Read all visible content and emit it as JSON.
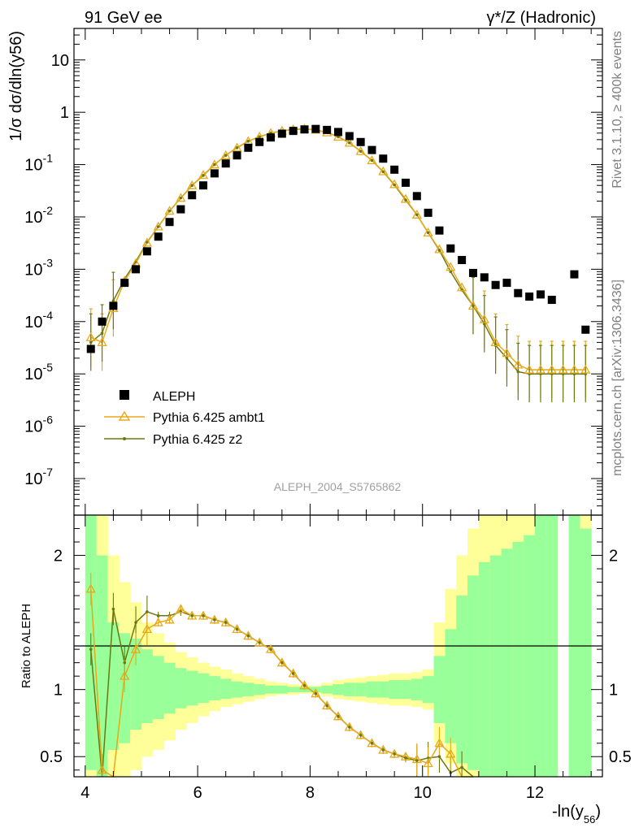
{
  "header": {
    "left": "91 GeV ee",
    "right": "γ*/Z (Hadronic)"
  },
  "side_text": {
    "top": "Rivet 3.1.10, ≥ 400k events",
    "bottom": "mcplots.cern.ch [arXiv:1306.3436]"
  },
  "watermark": "ALEPH_2004_S5765862",
  "colors": {
    "data": "#000000",
    "ambt1": "#e8a818",
    "z2": "#6b7a10",
    "band_inner": "#99ff99",
    "band_outer": "#ffff99"
  },
  "legend": [
    {
      "label": "ALEPH",
      "marker": "square"
    },
    {
      "label": "Pythia 6.425 ambt1",
      "marker": "triangle"
    },
    {
      "label": "Pythia 6.425 z2",
      "marker": "dot"
    }
  ],
  "chart_data": [
    {
      "type": "scatter",
      "title": "",
      "ylabel": "1/σ dσ/dln(y56)",
      "xlabel": "",
      "yscale": "log",
      "xlim": [
        3.8,
        13.2
      ],
      "ylim": [
        2e-08,
        40
      ],
      "yticks": [
        {
          "v": 1e-07,
          "label": "10",
          "exp": "-7"
        },
        {
          "v": 1e-06,
          "label": "10",
          "exp": "-6"
        },
        {
          "v": 1e-05,
          "label": "10",
          "exp": "-5"
        },
        {
          "v": 0.0001,
          "label": "10",
          "exp": "-4"
        },
        {
          "v": 0.001,
          "label": "10",
          "exp": "-3"
        },
        {
          "v": 0.01,
          "label": "10",
          "exp": "-2"
        },
        {
          "v": 0.1,
          "label": "10",
          "exp": "-1"
        },
        {
          "v": 1,
          "label": "1",
          "exp": ""
        },
        {
          "v": 10,
          "label": "10",
          "exp": ""
        }
      ],
      "series": [
        {
          "name": "ALEPH",
          "x": [
            4.1,
            4.3,
            4.5,
            4.7,
            4.9,
            5.1,
            5.3,
            5.5,
            5.7,
            5.9,
            6.1,
            6.3,
            6.5,
            6.7,
            6.9,
            7.1,
            7.3,
            7.5,
            7.7,
            7.9,
            8.1,
            8.3,
            8.5,
            8.7,
            8.9,
            9.1,
            9.3,
            9.5,
            9.7,
            9.9,
            10.1,
            10.3,
            10.5,
            10.7,
            10.9,
            11.1,
            11.3,
            11.5,
            11.7,
            11.9,
            12.1,
            12.3,
            12.7,
            12.9
          ],
          "y": [
            3e-05,
            0.0001,
            0.0002,
            0.00055,
            0.001,
            0.0022,
            0.0042,
            0.008,
            0.014,
            0.026,
            0.04,
            0.068,
            0.105,
            0.15,
            0.21,
            0.27,
            0.33,
            0.39,
            0.44,
            0.47,
            0.48,
            0.46,
            0.42,
            0.35,
            0.27,
            0.19,
            0.13,
            0.08,
            0.045,
            0.025,
            0.012,
            0.0055,
            0.0025,
            0.0015,
            0.00085,
            0.0007,
            0.0005,
            0.00055,
            0.00035,
            0.0003,
            0.00033,
            0.00026,
            0.0008,
            7e-05
          ]
        },
        {
          "name": "Pythia 6.425 ambt1",
          "x": [
            4.1,
            4.3,
            4.5,
            4.7,
            4.9,
            5.1,
            5.3,
            5.5,
            5.7,
            5.9,
            6.1,
            6.3,
            6.5,
            6.7,
            6.9,
            7.1,
            7.3,
            7.5,
            7.7,
            7.9,
            8.1,
            8.3,
            8.5,
            8.7,
            8.9,
            9.1,
            9.3,
            9.5,
            9.7,
            9.9,
            10.1,
            10.3,
            10.5,
            10.7,
            10.9,
            11.1,
            11.3,
            11.5,
            11.7,
            11.9,
            12.1,
            12.3,
            12.5,
            12.7,
            12.9
          ],
          "y": [
            5e-05,
            4e-05,
            0.00018,
            0.0006,
            0.0013,
            0.0032,
            0.0065,
            0.013,
            0.023,
            0.04,
            0.063,
            0.1,
            0.15,
            0.21,
            0.28,
            0.34,
            0.4,
            0.44,
            0.47,
            0.48,
            0.46,
            0.41,
            0.34,
            0.26,
            0.18,
            0.12,
            0.074,
            0.042,
            0.022,
            0.011,
            0.005,
            0.0024,
            0.0011,
            0.00045,
            0.0002,
            0.00011,
            4e-05,
            2.5e-05,
            1.5e-05,
            1.2e-05,
            1.2e-05,
            1.2e-05,
            1.2e-05,
            1.2e-05,
            1.2e-05
          ]
        },
        {
          "name": "Pythia 6.425 z2",
          "x": [
            4.1,
            4.3,
            4.5,
            4.7,
            4.9,
            5.1,
            5.3,
            5.5,
            5.7,
            5.9,
            6.1,
            6.3,
            6.5,
            6.7,
            6.9,
            7.1,
            7.3,
            7.5,
            7.7,
            7.9,
            8.1,
            8.3,
            8.5,
            8.7,
            8.9,
            9.1,
            9.3,
            9.5,
            9.7,
            9.9,
            10.1,
            10.3,
            10.5,
            10.7,
            10.9,
            11.1,
            11.3,
            11.5,
            11.7,
            11.9,
            12.1,
            12.3,
            12.5,
            12.7,
            12.9
          ],
          "y": [
            4e-05,
            6e-05,
            0.00025,
            0.00065,
            0.0014,
            0.0033,
            0.0065,
            0.013,
            0.023,
            0.04,
            0.062,
            0.1,
            0.15,
            0.21,
            0.28,
            0.34,
            0.4,
            0.44,
            0.47,
            0.48,
            0.46,
            0.41,
            0.34,
            0.26,
            0.18,
            0.12,
            0.073,
            0.041,
            0.021,
            0.011,
            0.005,
            0.0023,
            0.0009,
            0.0004,
            0.0002,
            9e-05,
            3.5e-05,
            2e-05,
            1.1e-05,
            1e-05,
            1e-05,
            1e-05,
            1e-05,
            1e-05,
            1e-05
          ]
        }
      ]
    },
    {
      "type": "line",
      "title": "",
      "ylabel": "Ratio to ALEPH",
      "xlabel": "-ln(y56)",
      "xlim": [
        3.8,
        13.2
      ],
      "ylim": [
        0.35,
        2.3
      ],
      "xticks": [
        4,
        6,
        8,
        10,
        12
      ],
      "yticks": [
        0.5,
        1,
        2
      ],
      "reference_line": 1,
      "bands": {
        "x_edges": [
          4.0,
          4.2,
          4.4,
          4.6,
          4.8,
          5.0,
          5.2,
          5.4,
          5.6,
          5.8,
          6.0,
          6.2,
          6.4,
          6.6,
          6.8,
          7.0,
          7.2,
          7.4,
          7.6,
          7.8,
          8.0,
          8.2,
          8.4,
          8.6,
          8.8,
          9.0,
          9.2,
          9.4,
          9.6,
          9.8,
          10.0,
          10.2,
          10.4,
          10.6,
          10.8,
          11.0,
          11.2,
          11.4,
          11.6,
          11.8,
          12.0,
          12.2,
          12.4,
          12.6,
          12.8,
          13.0
        ],
        "inner_lo": [
          0.4,
          0.35,
          0.55,
          0.6,
          0.7,
          0.75,
          0.78,
          0.82,
          0.86,
          0.88,
          0.9,
          0.92,
          0.93,
          0.94,
          0.95,
          0.96,
          0.97,
          0.97,
          0.98,
          0.98,
          0.98,
          0.97,
          0.96,
          0.95,
          0.95,
          0.94,
          0.94,
          0.93,
          0.93,
          0.92,
          0.9,
          0.75,
          0.6,
          0.45,
          0.4,
          0.35,
          0.35,
          0.35,
          0.35,
          0.35,
          0.35,
          0.35,
          null,
          0.35,
          0.35
        ],
        "inner_hi": [
          2.3,
          2.0,
          1.5,
          1.42,
          1.38,
          1.3,
          1.25,
          1.2,
          1.16,
          1.14,
          1.12,
          1.1,
          1.08,
          1.06,
          1.05,
          1.04,
          1.03,
          1.03,
          1.02,
          1.02,
          1.02,
          1.03,
          1.04,
          1.05,
          1.05,
          1.06,
          1.06,
          1.07,
          1.07,
          1.08,
          1.1,
          1.25,
          1.45,
          1.7,
          1.85,
          1.95,
          2.0,
          2.05,
          2.1,
          2.15,
          2.3,
          2.3,
          null,
          2.3,
          2.2
        ],
        "outer_lo": [
          0.35,
          0.35,
          0.35,
          0.35,
          0.4,
          0.5,
          0.55,
          0.62,
          0.7,
          0.75,
          0.8,
          0.84,
          0.87,
          0.89,
          0.91,
          0.93,
          0.95,
          0.96,
          0.96,
          0.97,
          0.97,
          0.95,
          0.93,
          0.92,
          0.91,
          0.9,
          0.89,
          0.88,
          0.88,
          0.87,
          0.85,
          0.6,
          0.45,
          0.35,
          0.35,
          0.35,
          0.35,
          0.35,
          0.35,
          0.35,
          0.35,
          0.35,
          null,
          0.35,
          0.35
        ],
        "outer_hi": [
          2.3,
          2.3,
          2.0,
          1.8,
          1.65,
          1.5,
          1.42,
          1.35,
          1.28,
          1.24,
          1.2,
          1.17,
          1.15,
          1.12,
          1.1,
          1.08,
          1.06,
          1.05,
          1.04,
          1.03,
          1.03,
          1.05,
          1.07,
          1.08,
          1.09,
          1.1,
          1.11,
          1.12,
          1.12,
          1.13,
          1.15,
          1.5,
          1.75,
          2.0,
          2.2,
          2.3,
          2.3,
          2.3,
          2.3,
          2.3,
          2.3,
          2.3,
          null,
          2.3,
          2.3
        ]
      },
      "series": [
        {
          "name": "Pythia 6.425 ambt1",
          "x": [
            4.1,
            4.3,
            4.5,
            4.7,
            4.9,
            5.1,
            5.3,
            5.5,
            5.7,
            5.9,
            6.1,
            6.3,
            6.5,
            6.7,
            6.9,
            7.1,
            7.3,
            7.5,
            7.7,
            7.9,
            8.1,
            8.3,
            8.5,
            8.7,
            8.9,
            9.1,
            9.3,
            9.5,
            9.7,
            9.9,
            10.1,
            10.3,
            10.5,
            10.7,
            10.9
          ],
          "y": [
            1.75,
            0.4,
            0.3,
            1.1,
            1.3,
            1.45,
            1.5,
            1.52,
            1.6,
            1.55,
            1.55,
            1.52,
            1.5,
            1.45,
            1.4,
            1.35,
            1.3,
            1.2,
            1.12,
            1.03,
            0.97,
            0.88,
            0.8,
            0.72,
            0.66,
            0.6,
            0.55,
            0.52,
            0.5,
            0.48,
            0.45,
            0.6,
            0.52,
            0.35,
            0.35
          ]
        },
        {
          "name": "Pythia 6.425 z2",
          "x": [
            4.1,
            4.3,
            4.5,
            4.7,
            4.9,
            5.1,
            5.3,
            5.5,
            5.7,
            5.9,
            6.1,
            6.3,
            6.5,
            6.7,
            6.9,
            7.1,
            7.3,
            7.5,
            7.7,
            7.9,
            8.1,
            8.3,
            8.5,
            8.7,
            8.9,
            9.1,
            9.3,
            9.5,
            9.7,
            9.9,
            10.1,
            10.3,
            10.5,
            10.7,
            10.9
          ],
          "y": [
            1.3,
            0.35,
            1.6,
            1.2,
            1.5,
            1.58,
            1.55,
            1.55,
            1.58,
            1.55,
            1.55,
            1.52,
            1.5,
            1.45,
            1.4,
            1.35,
            1.3,
            1.2,
            1.12,
            1.03,
            0.97,
            0.88,
            0.8,
            0.72,
            0.66,
            0.6,
            0.55,
            0.52,
            0.49,
            0.47,
            0.49,
            0.5,
            0.38,
            0.42,
            0.35
          ]
        }
      ]
    }
  ]
}
